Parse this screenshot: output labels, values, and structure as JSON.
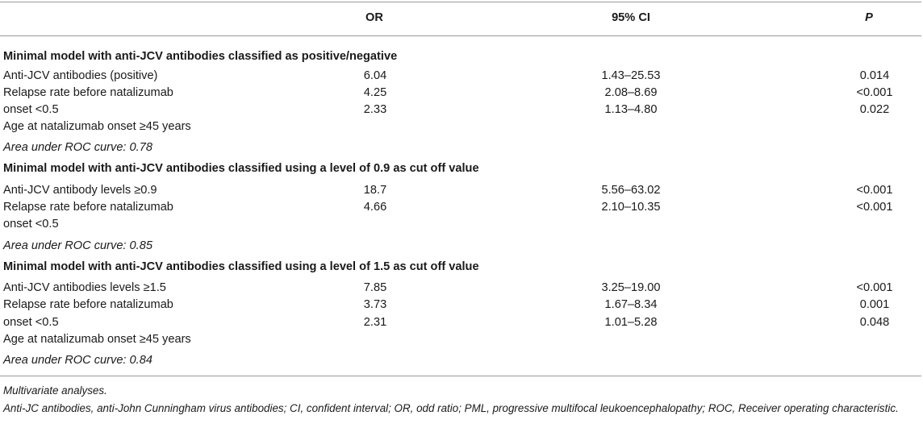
{
  "header": {
    "col0": "",
    "or": "OR",
    "ci": "95% CI",
    "p": "P"
  },
  "sections": [
    {
      "title": "Minimal model with anti-JCV antibodies classified as positive/negative",
      "rows": [
        {
          "label": "Anti-JCV antibodies (positive)",
          "or": "6.04",
          "ci": "1.43–25.53",
          "p": "0.014"
        },
        {
          "label": "Relapse rate before natalizumab",
          "or": "4.25",
          "ci": "2.08–8.69",
          "p": "<0.001"
        },
        {
          "label": "onset <0.5",
          "or": "2.33",
          "ci": "1.13–4.80",
          "p": "0.022"
        },
        {
          "label": "Age at natalizumab onset ≥45 years",
          "or": "",
          "ci": "",
          "p": ""
        }
      ],
      "auc": "Area under ROC curve: 0.78"
    },
    {
      "title": "Minimal model with anti-JCV antibodies classified using a level of 0.9 as cut off value",
      "rows": [
        {
          "label": "Anti-JCV antibody levels ≥0.9",
          "or": "18.7",
          "ci": "5.56–63.02",
          "p": "<0.001"
        },
        {
          "label": "Relapse rate before natalizumab",
          "or": "4.66",
          "ci": "2.10–10.35",
          "p": "<0.001"
        },
        {
          "label": "onset <0.5",
          "or": "",
          "ci": "",
          "p": ""
        }
      ],
      "auc": "Area under ROC curve: 0.85"
    },
    {
      "title": "Minimal model with anti-JCV antibodies classified using a level of 1.5 as cut off value",
      "rows": [
        {
          "label": "Anti-JCV antibodies levels ≥1.5",
          "or": "7.85",
          "ci": "3.25–19.00",
          "p": "<0.001"
        },
        {
          "label": "Relapse rate before natalizumab",
          "or": "3.73",
          "ci": "1.67–8.34",
          "p": "0.001"
        },
        {
          "label": "onset <0.5",
          "or": "2.31",
          "ci": "1.01–5.28",
          "p": "0.048"
        },
        {
          "label": "Age at natalizumab onset ≥45 years",
          "or": "",
          "ci": "",
          "p": ""
        }
      ],
      "auc": "Area under ROC curve: 0.84"
    }
  ],
  "footnotes": {
    "line1": "Multivariate analyses.",
    "line2": "Anti-JC antibodies, anti-John Cunningham virus antibodies; CI, confident interval; OR, odd ratio; PML, progressive multifocal leukoencephalopathy; ROC, Receiver operating characteristic."
  }
}
